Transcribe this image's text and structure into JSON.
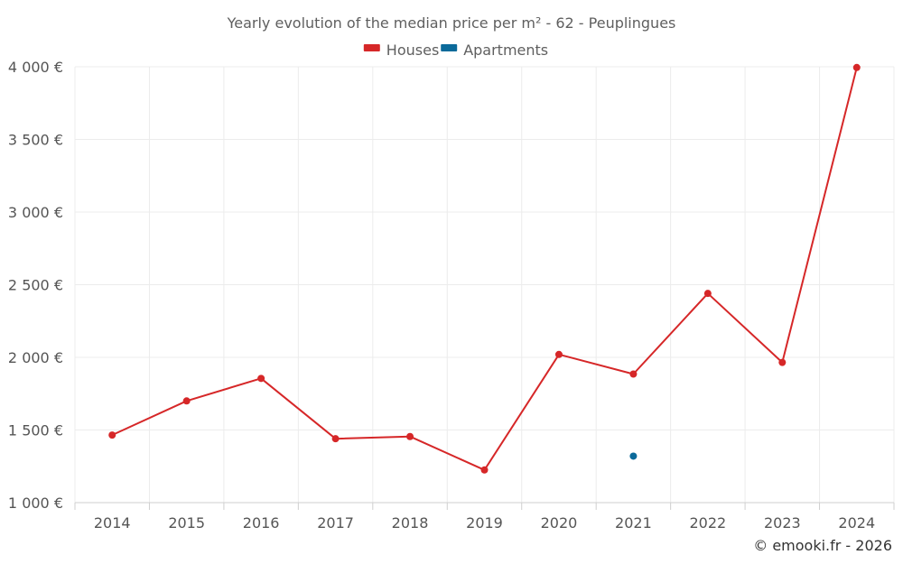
{
  "chart_data": {
    "type": "line",
    "title": "Yearly evolution of the median price per m² - 62 - Peuplingues",
    "categories": [
      "2014",
      "2015",
      "2016",
      "2017",
      "2018",
      "2019",
      "2020",
      "2021",
      "2022",
      "2023",
      "2024"
    ],
    "series": [
      {
        "name": "Houses",
        "color": "#d62728",
        "values": [
          1465,
          1700,
          1855,
          1440,
          1455,
          1225,
          2020,
          1885,
          2440,
          1965,
          3995
        ]
      },
      {
        "name": "Apartments",
        "color": "#0b6a9a",
        "values": [
          null,
          null,
          null,
          null,
          null,
          null,
          null,
          1320,
          null,
          null,
          null
        ]
      }
    ],
    "ylim": [
      1000,
      4000
    ],
    "yticks": [
      1000,
      1500,
      2000,
      2500,
      3000,
      3500,
      4000
    ],
    "ytick_labels": [
      "1 000 €",
      "1 500 €",
      "2 000 €",
      "2 500 €",
      "3 000 €",
      "3 500 €",
      "4 000 €"
    ],
    "xlabel": "",
    "ylabel": "",
    "grid": true,
    "legend_position": "top-center"
  },
  "credit": "© emooki.fr - 2026"
}
